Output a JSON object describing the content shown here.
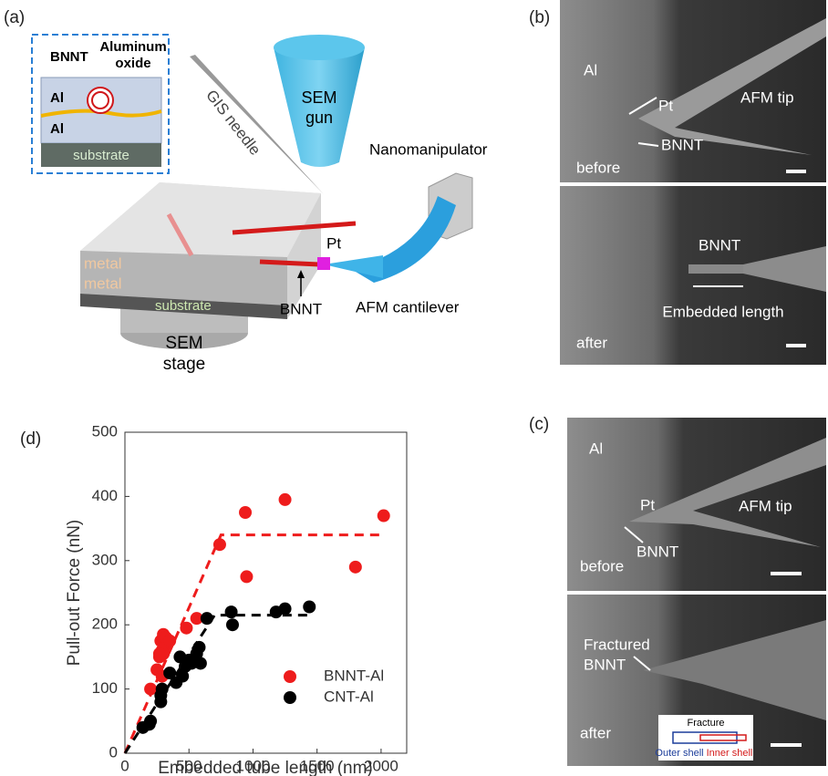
{
  "panels": {
    "a": {
      "label": "(a)",
      "inset": {
        "bnnt": "BNNT",
        "oxide": [
          "Aluminum",
          "oxide"
        ],
        "al_top": "Al",
        "al_bottom": "Al",
        "substrate": "substrate"
      },
      "gis": "GIS needle",
      "gun": [
        "SEM",
        "gun"
      ],
      "manipulator": "Nanomanipulator",
      "pt": "Pt",
      "metal_top": "metal",
      "metal_bottom": "metal",
      "substrate": "substrate",
      "bnnt": "BNNT",
      "cantilever": "AFM cantilever",
      "stage": [
        "SEM",
        "stage"
      ]
    },
    "b": {
      "label": "(b)",
      "top": {
        "al": "Al",
        "pt": "Pt",
        "tip": "AFM tip",
        "bnnt": "BNNT",
        "state": "before"
      },
      "bottom": {
        "bnnt": "BNNT",
        "length": "Embedded length",
        "state": "after"
      }
    },
    "c": {
      "label": "(c)",
      "top": {
        "al": "Al",
        "pt": "Pt",
        "tip": "AFM tip",
        "bnnt": "BNNT",
        "state": "before"
      },
      "bottom": {
        "fractured": [
          "Fractured",
          "BNNT"
        ],
        "state": "after",
        "inset": {
          "fracture": "Fracture",
          "outer": "Outer shell",
          "inner": "Inner shell"
        }
      }
    },
    "d": {
      "label": "(d)"
    }
  },
  "chart_data": {
    "type": "scatter",
    "xlabel": "Embedded tube length (nm)",
    "ylabel": "Pull-out Force (nN)",
    "xlim": [
      0,
      2200
    ],
    "ylim": [
      0,
      500
    ],
    "xticks": [
      0,
      500,
      1000,
      1500,
      2000
    ],
    "yticks": [
      0,
      100,
      200,
      300,
      400,
      500
    ],
    "legend": "lower right",
    "series": [
      {
        "name": "BNNT-Al",
        "color": "#ee1c1c",
        "x": [
          200,
          250,
          270,
          280,
          290,
          300,
          310,
          320,
          330,
          350,
          300,
          290,
          270,
          480,
          560,
          740,
          940,
          950,
          1250,
          1800,
          2020
        ],
        "y": [
          100,
          130,
          150,
          175,
          160,
          185,
          165,
          180,
          170,
          175,
          155,
          120,
          155,
          195,
          210,
          325,
          375,
          275,
          395,
          290,
          370
        ],
        "fit": {
          "x": [
            0,
            750,
            2000
          ],
          "y": [
            0,
            340,
            340
          ]
        }
      },
      {
        "name": "CNT-Al",
        "color": "#000000",
        "x": [
          140,
          190,
          200,
          280,
          290,
          350,
          400,
          430,
          450,
          470,
          500,
          520,
          560,
          580,
          590,
          640,
          830,
          840,
          1180,
          1250,
          1440,
          280
        ],
        "y": [
          40,
          45,
          50,
          80,
          100,
          125,
          110,
          150,
          120,
          135,
          145,
          140,
          155,
          165,
          140,
          210,
          220,
          200,
          220,
          225,
          228,
          90
        ],
        "fit": {
          "x": [
            0,
            700,
            1430
          ],
          "y": [
            0,
            215,
            215
          ]
        }
      }
    ]
  }
}
